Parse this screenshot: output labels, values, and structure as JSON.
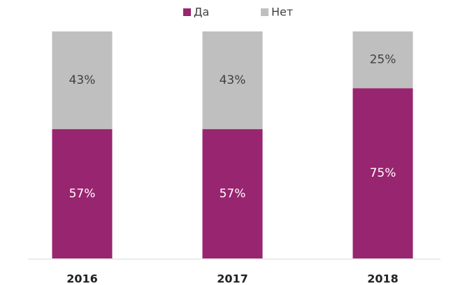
{
  "chart_data": {
    "type": "stacked_bar_100",
    "categories": [
      "2016",
      "2017",
      "2018"
    ],
    "series": [
      {
        "name": "Да",
        "color": "#98256f",
        "values": [
          57,
          57,
          75
        ],
        "value_labels": [
          "57%",
          "57%",
          "75%"
        ]
      },
      {
        "name": "Нет",
        "color": "#bfbfbf",
        "values": [
          43,
          43,
          25
        ],
        "value_labels": [
          "43%",
          "43%",
          "25%"
        ]
      }
    ]
  }
}
